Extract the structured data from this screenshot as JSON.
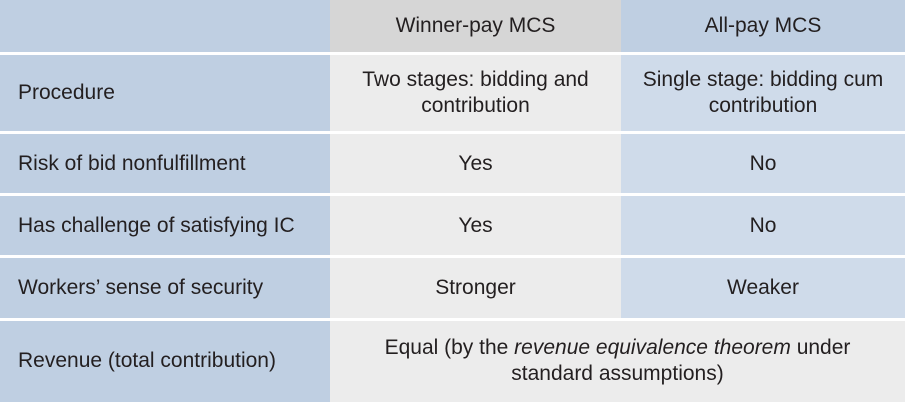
{
  "table": {
    "headers": {
      "corner": "",
      "winner_pay": "Winner-pay MCS",
      "all_pay": "All-pay MCS"
    },
    "rows": [
      {
        "label": "Procedure",
        "winner_pay": "Two stages: bidding and contribution",
        "all_pay": "Single stage: bidding cum contribution"
      },
      {
        "label": "Risk of bid nonfulfillment",
        "winner_pay": "Yes",
        "all_pay": "No"
      },
      {
        "label": "Has challenge of satisfying IC",
        "winner_pay": "Yes",
        "all_pay": "No"
      },
      {
        "label": "Workers’ sense of security",
        "winner_pay": "Stronger",
        "all_pay": "Weaker"
      }
    ],
    "revenue": {
      "label": "Revenue (total contribution)",
      "value_before": "Equal (by the ",
      "value_emphasis": "revenue equivalence theorem",
      "value_after": " under standard assumptions)"
    }
  }
}
